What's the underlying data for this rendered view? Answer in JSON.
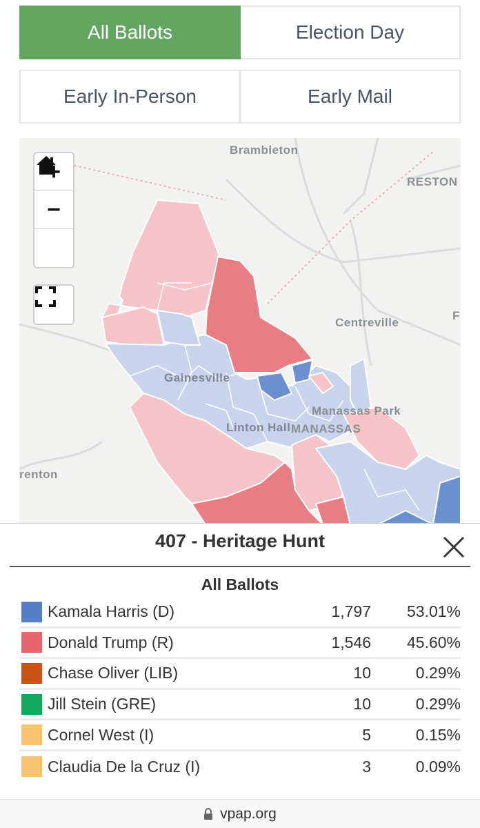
{
  "tabs": [
    {
      "label": "All Ballots",
      "active": true
    },
    {
      "label": "Election Day",
      "active": false
    },
    {
      "label": "Early In-Person",
      "active": false
    },
    {
      "label": "Early Mail",
      "active": false
    }
  ],
  "map": {
    "controls": {
      "zoom_in": "+",
      "zoom_out": "−",
      "home_icon": "home-icon",
      "fullscreen_icon": "fullscreen-icon"
    },
    "labels": [
      "Brambleton",
      "RESTON",
      "Centreville",
      "F",
      "Gainesville",
      "Manassas Park",
      "Linton Hall",
      "MANASSAS",
      "renton"
    ],
    "colors": {
      "strong_rep": "#e87e85",
      "lean_rep": "#f4c4c8",
      "lean_dem": "#c8d4ec",
      "strong_dem": "#6c8fcf"
    }
  },
  "panel": {
    "title": "407 - Heritage Hunt",
    "subtitle": "All Ballots",
    "close_icon": "close-icon",
    "results": [
      {
        "candidate": "Kamala Harris (D)",
        "votes": "1,797",
        "percent": "53.01%",
        "color": "#5580c8"
      },
      {
        "candidate": "Donald Trump (R)",
        "votes": "1,546",
        "percent": "45.60%",
        "color": "#e8666e"
      },
      {
        "candidate": "Chase Oliver (LIB)",
        "votes": "10",
        "percent": "0.29%",
        "color": "#c75314"
      },
      {
        "candidate": "Jill Stein (GRE)",
        "votes": "10",
        "percent": "0.29%",
        "color": "#14a85c"
      },
      {
        "candidate": "Cornel West (I)",
        "votes": "5",
        "percent": "0.15%",
        "color": "#f7c46e"
      },
      {
        "candidate": "Claudia De la Cruz (I)",
        "votes": "3",
        "percent": "0.09%",
        "color": "#f7c46e"
      }
    ]
  },
  "footer": {
    "url": "vpap.org",
    "lock_icon": "lock-icon"
  }
}
